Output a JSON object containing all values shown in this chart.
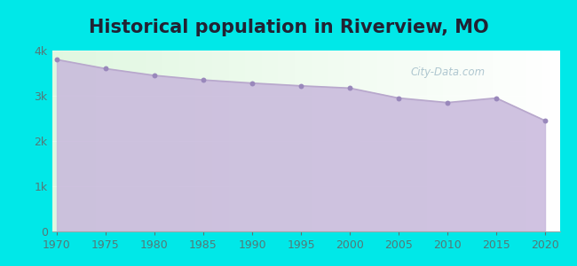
{
  "title": "Historical population in Riverview, MO",
  "years": [
    1970,
    1975,
    1980,
    1985,
    1990,
    1995,
    2000,
    2005,
    2010,
    2015,
    2020
  ],
  "population": [
    3800,
    3600,
    3450,
    3350,
    3280,
    3220,
    3170,
    2950,
    2850,
    2950,
    2450
  ],
  "ylim": [
    0,
    4000
  ],
  "yticks": [
    0,
    1000,
    2000,
    3000,
    4000
  ],
  "ytick_labels": [
    "0",
    "1k",
    "2k",
    "3k",
    "4k"
  ],
  "line_color": "#b8a8cc",
  "fill_color": "#c8b8dc",
  "fill_alpha": 0.85,
  "marker_color": "#9988bb",
  "marker_size": 18,
  "background_outer": "#00e8e8",
  "background_plot": "#e8fce8",
  "title_color": "#222233",
  "tick_color": "#557777",
  "watermark": "City-Data.com",
  "title_fontsize": 15,
  "tick_fontsize": 9,
  "xlim_left": 1969.5,
  "xlim_right": 2021.5
}
